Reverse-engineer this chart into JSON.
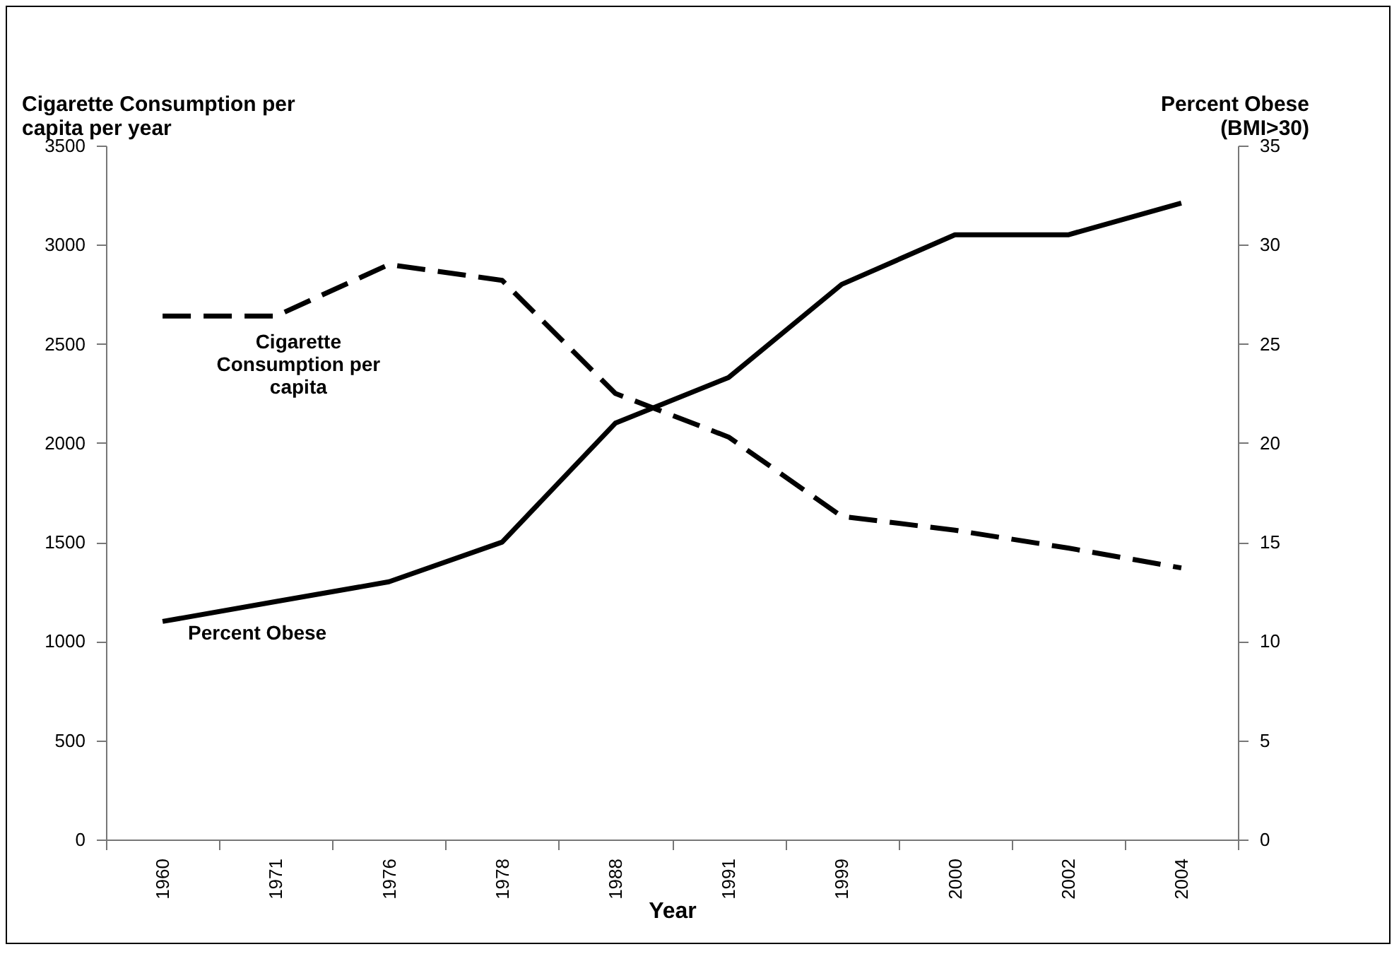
{
  "chart_data": {
    "type": "line",
    "xlabel": "Year",
    "ylabel": "Cigarette Consumption per capita per year",
    "y2label": "Percent Obese (BMI>30)",
    "categories": [
      "1960",
      "1971",
      "1976",
      "1978",
      "1988",
      "1991",
      "1999",
      "2000",
      "2002",
      "2004"
    ],
    "series": [
      {
        "name": "Cigarette Consumption per capita",
        "color": "#000000",
        "line_style": "dashed",
        "values": [
          2640,
          2640,
          2900,
          2820,
          2250,
          2030,
          1630,
          1560,
          1470,
          1370
        ]
      },
      {
        "name": "Percent Obese",
        "color": "#000000",
        "line_style": "solid",
        "axis": "y2",
        "values": [
          11,
          12,
          13,
          15,
          21,
          23.3,
          28,
          30.5,
          30.5,
          32.1
        ]
      }
    ],
    "ylim": [
      0,
      3500
    ],
    "yticks": [
      0,
      500,
      1000,
      1500,
      2000,
      2500,
      3000,
      3500
    ],
    "y2lim": [
      0,
      35
    ],
    "y2ticks": [
      0,
      5,
      10,
      15,
      20,
      25,
      30,
      35
    ],
    "grid": false,
    "marker": "none"
  }
}
